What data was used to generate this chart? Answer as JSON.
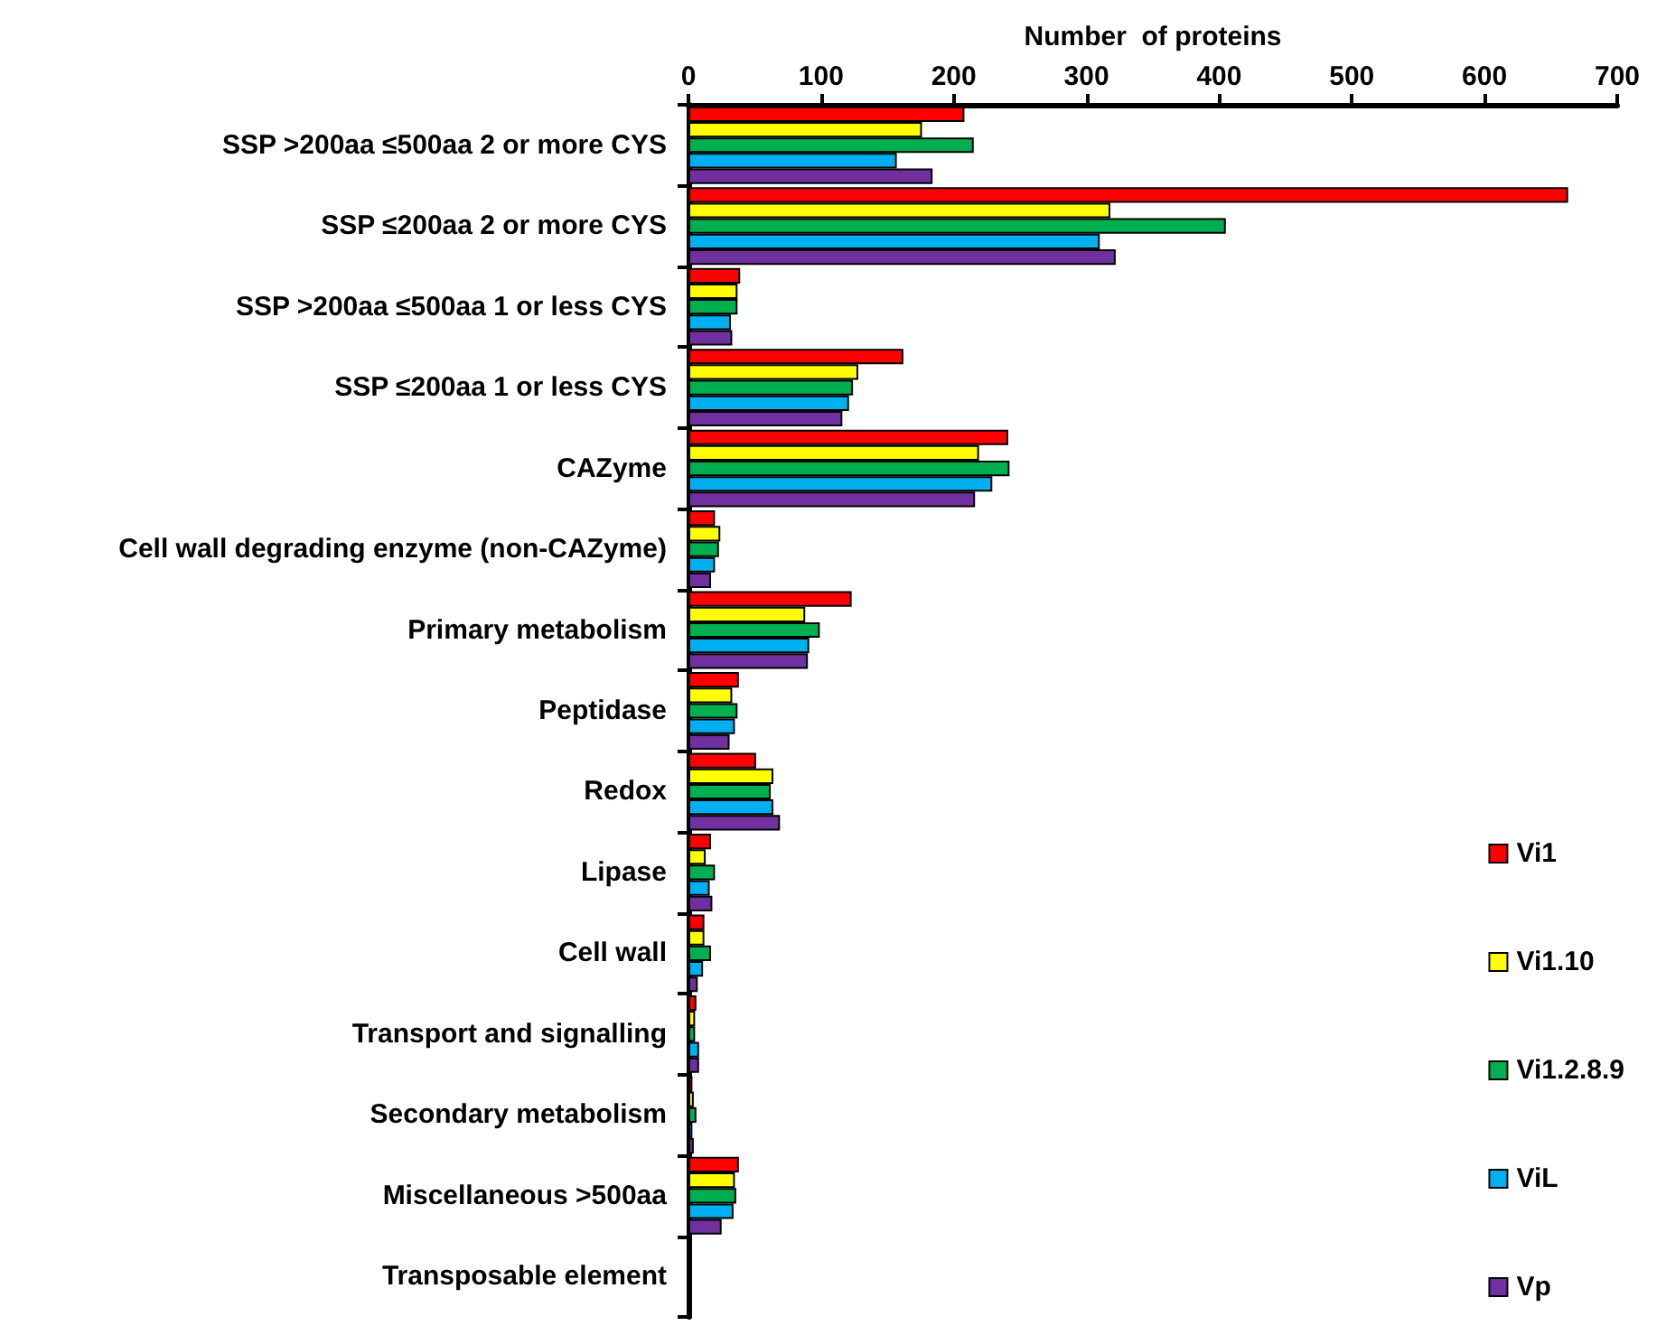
{
  "chart_data": {
    "type": "bar",
    "orientation": "horizontal",
    "xlabel": "Number  of proteins",
    "categories": [
      "SSP >200aa ≤500aa 2 or more CYS",
      "SSP ≤200aa 2 or more CYS",
      "SSP >200aa ≤500aa 1 or less CYS",
      "SSP ≤200aa 1 or less CYS",
      "CAZyme",
      "Cell wall degrading enzyme (non-CAZyme)",
      "Primary metabolism",
      "Peptidase",
      "Redox",
      "Lipase",
      "Cell wall",
      "Transport and signalling",
      "Secondary metabolism",
      "Miscellaneous >500aa",
      "Transposable element"
    ],
    "series": [
      {
        "name": "Vi1",
        "color": "#ff0000",
        "values": [
          208,
          663,
          39,
          162,
          241,
          20,
          123,
          38,
          51,
          17,
          12,
          6,
          3,
          38,
          2
        ]
      },
      {
        "name": "Vi1.10",
        "color": "#ffff00",
        "values": [
          176,
          318,
          37,
          128,
          219,
          24,
          88,
          33,
          64,
          13,
          12,
          5,
          4,
          35,
          null
        ]
      },
      {
        "name": "Vi1.2.8.9",
        "color": "#00b050",
        "values": [
          215,
          405,
          37,
          124,
          242,
          23,
          99,
          37,
          62,
          20,
          17,
          5,
          6,
          36,
          null
        ]
      },
      {
        "name": "ViL",
        "color": "#00b0f0",
        "values": [
          157,
          310,
          32,
          121,
          229,
          20,
          91,
          35,
          64,
          16,
          11,
          8,
          3,
          34,
          null
        ]
      },
      {
        "name": "Vp",
        "color": "#7030a0",
        "values": [
          184,
          322,
          33,
          116,
          216,
          17,
          90,
          31,
          69,
          18,
          7,
          8,
          4,
          25,
          null
        ]
      }
    ],
    "xlim": [
      0,
      700
    ],
    "xticks": [
      0,
      100,
      200,
      300,
      400,
      500,
      600,
      700
    ],
    "grid": false,
    "legend": "right"
  }
}
